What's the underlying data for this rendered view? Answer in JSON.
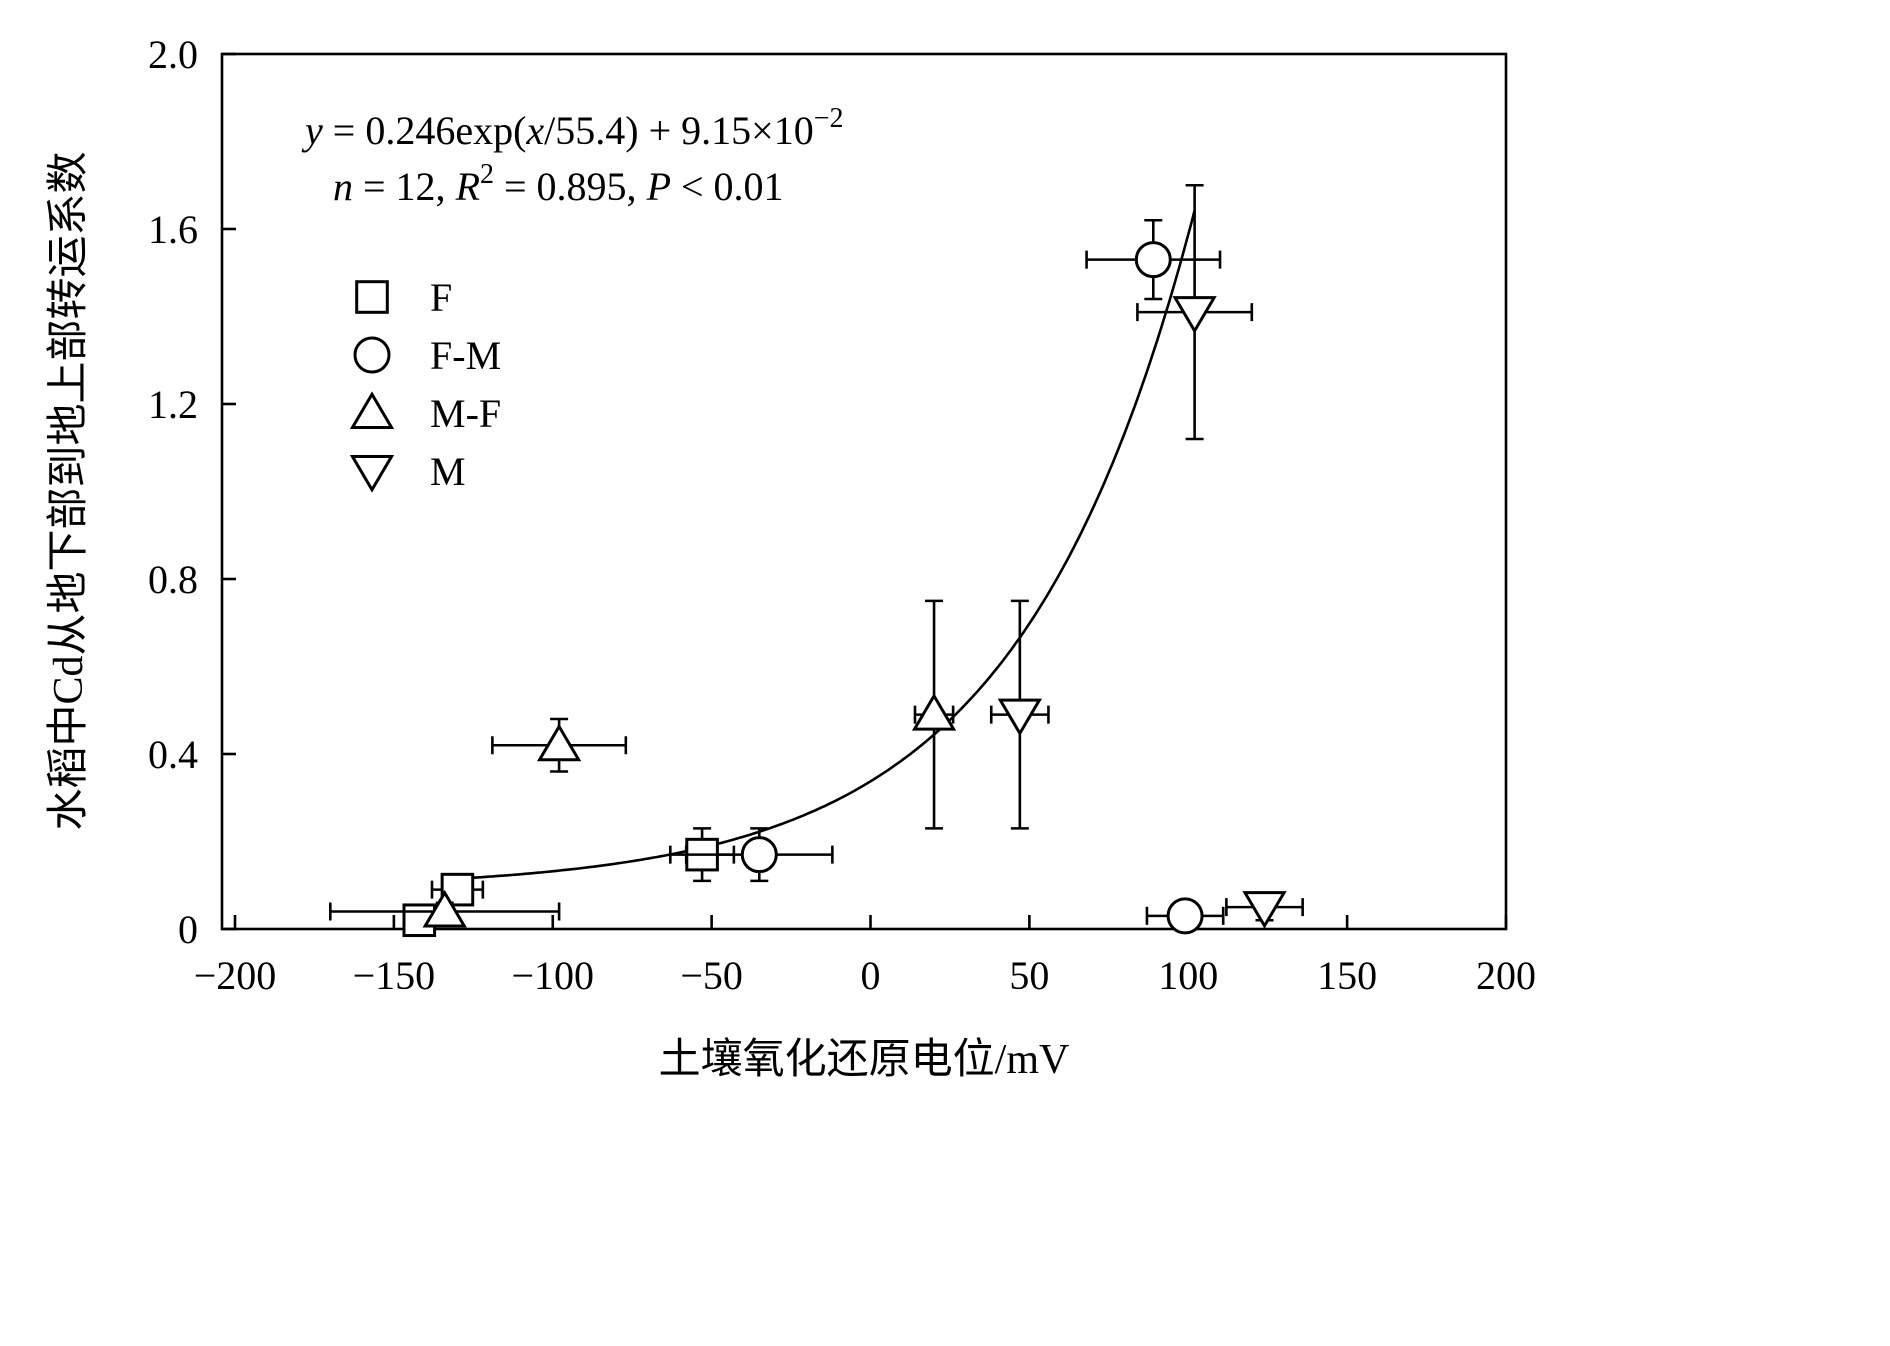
{
  "chart_data": {
    "type": "scatter",
    "xlabel": "土壤氧化还原电位/mV",
    "ylabel": "水稻中Cd从地下部到地上部转运系数",
    "xlim": [
      -200,
      200
    ],
    "ylim": [
      0,
      2.0
    ],
    "x_ticks": [
      -200,
      -150,
      -100,
      -50,
      0,
      50,
      100,
      150,
      200
    ],
    "x_tick_labels": [
      "−200",
      "−150",
      "−100",
      "−50",
      "0",
      "50",
      "100",
      "150",
      "200"
    ],
    "y_ticks": [
      0,
      0.4,
      0.8,
      1.2,
      1.6,
      2.0
    ],
    "y_tick_labels": [
      "0",
      "0.4",
      "0.8",
      "1.2",
      "1.6",
      "2.0"
    ],
    "grid": false,
    "legend_position": "upper-left",
    "annotation": {
      "line1": {
        "y": "y",
        "eq_a": " = 0.246exp(",
        "x": "x",
        "eq_b": "/55.4) + 9.15×10",
        "exp": "−2"
      },
      "line2": {
        "n": "n",
        "n_val": " = 12, ",
        "R": "R",
        "R_sup": "2",
        "r_val": " = 0.895, ",
        "P": "P",
        "p_val": " < 0.01"
      }
    },
    "fit": {
      "a": 0.246,
      "b": 55.4,
      "c": 0.0915,
      "x_range": [
        -133,
        102
      ]
    },
    "series": [
      {
        "name": "F",
        "marker": "square",
        "points": [
          {
            "x": -130,
            "y": 0.09,
            "xerr": 8,
            "yerr": 0.03
          },
          {
            "x": -53,
            "y": 0.17,
            "xerr": 10,
            "yerr": 0.06
          },
          {
            "x": -142,
            "y": 0.02,
            "xerr": 4,
            "yerr": 0.01
          }
        ]
      },
      {
        "name": "F-M",
        "marker": "circle",
        "points": [
          {
            "x": 89,
            "y": 1.53,
            "xerr": 21,
            "yerr": 0.09
          },
          {
            "x": -35,
            "y": 0.17,
            "xerr": 23,
            "yerr": 0.06
          },
          {
            "x": 99,
            "y": 0.03,
            "xerr": 12,
            "yerr": 0.01
          }
        ]
      },
      {
        "name": "M-F",
        "marker": "triangle-up",
        "points": [
          {
            "x": -98,
            "y": 0.42,
            "xerr": 21,
            "yerr": 0.06
          },
          {
            "x": 20,
            "y": 0.49,
            "xerr": 6,
            "yerr": 0.26
          },
          {
            "x": -134,
            "y": 0.04,
            "xerr": 36,
            "yerr": 0.02
          }
        ]
      },
      {
        "name": "M",
        "marker": "triangle-down",
        "points": [
          {
            "x": 102,
            "y": 1.41,
            "xerr": 18,
            "yerr": 0.29
          },
          {
            "x": 47,
            "y": 0.49,
            "xerr": 9,
            "yerr": 0.26
          },
          {
            "x": 124,
            "y": 0.05,
            "xerr": 12,
            "yerr": 0.03
          }
        ]
      }
    ]
  }
}
